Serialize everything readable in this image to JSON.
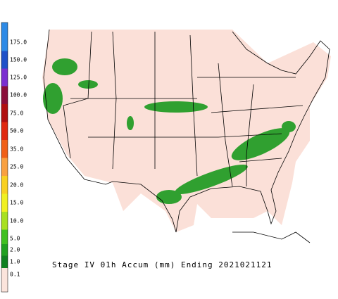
{
  "legend": {
    "levels": [
      {
        "label": "175.0",
        "color": "#2d8ae6"
      },
      {
        "label": "150.0",
        "color": "#1f50c8"
      },
      {
        "label": "125.0",
        "color": "#7a2fd0"
      },
      {
        "label": "100.0",
        "color": "#8a0f3a"
      },
      {
        "label": "75.0",
        "color": "#b01010"
      },
      {
        "label": "50.0",
        "color": "#e02810"
      },
      {
        "label": "35.0",
        "color": "#f06018"
      },
      {
        "label": "25.0",
        "color": "#f8a040"
      },
      {
        "label": "20.0",
        "color": "#f8d020"
      },
      {
        "label": "15.0",
        "color": "#f0f020"
      },
      {
        "label": "10.0",
        "color": "#a8e020"
      },
      {
        "label": "5.0",
        "color": "#40c020"
      },
      {
        "label": "2.0",
        "color": "#20a020"
      },
      {
        "label": "1.0",
        "color": "#108020"
      },
      {
        "label": "0.1",
        "color": "#fbe4dc"
      }
    ]
  },
  "caption": "Stage IV 01h Accum (mm) Ending 2021021121"
}
